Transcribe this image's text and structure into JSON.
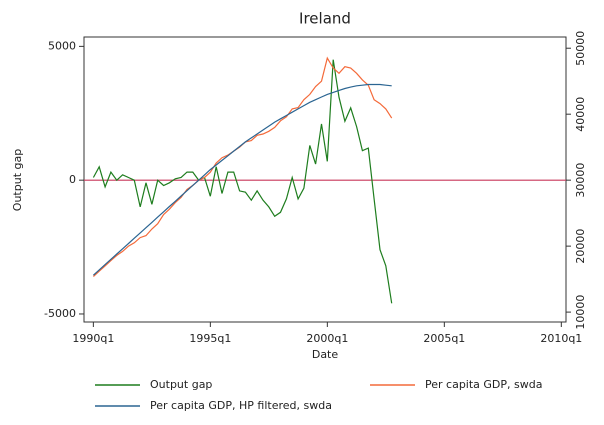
{
  "chart_data": {
    "type": "line",
    "title": "Ireland",
    "x_label": "Date",
    "y_label": "Output gap",
    "x": [
      1990,
      1990.25,
      1990.5,
      1990.75,
      1991,
      1991.25,
      1991.5,
      1991.75,
      1992,
      1992.25,
      1992.5,
      1992.75,
      1993,
      1993.25,
      1993.5,
      1993.75,
      1994,
      1994.25,
      1994.5,
      1994.75,
      1995,
      1995.25,
      1995.5,
      1995.75,
      1996,
      1996.25,
      1996.5,
      1996.75,
      1997,
      1997.25,
      1997.5,
      1997.75,
      1998,
      1998.25,
      1998.5,
      1998.75,
      1999,
      1999.25,
      1999.5,
      1999.75,
      2000,
      2000.25,
      2000.5,
      2000.75,
      2001,
      2001.25,
      2001.5,
      2001.75,
      2002,
      2002.25,
      2002.5,
      2002.75
    ],
    "series": [
      {
        "name": "Output gap",
        "color": "#1e7d1e",
        "axis": "y",
        "values": [
          100,
          500,
          -250,
          300,
          0,
          200,
          100,
          0,
          -1000,
          -100,
          -900,
          0,
          -200,
          -100,
          50,
          100,
          300,
          300,
          0,
          100,
          -600,
          500,
          -500,
          300,
          300,
          -400,
          -450,
          -750,
          -400,
          -750,
          -1000,
          -1350,
          -1200,
          -700,
          100,
          -700,
          -300,
          1300,
          600,
          2100,
          700,
          4500,
          3100,
          2200,
          2700,
          2000,
          1100,
          1200,
          -700,
          -2600,
          -3200,
          -4600
        ]
      },
      {
        "name": "Per capita GDP, swda",
        "color": "#f46a3a",
        "axis": "y2",
        "values": [
          15400,
          16200,
          17000,
          17800,
          18600,
          19200,
          20000,
          20500,
          21300,
          21600,
          22600,
          23400,
          24800,
          25600,
          26600,
          27400,
          28600,
          29200,
          30000,
          30400,
          31200,
          32600,
          33400,
          33800,
          34400,
          35000,
          35800,
          36000,
          36800,
          37000,
          37400,
          38000,
          39000,
          39600,
          40800,
          41000,
          42200,
          43000,
          44200,
          45000,
          48500,
          47000,
          46200,
          47200,
          47000,
          46200,
          45200,
          44400,
          42200,
          41600,
          40800,
          39400
        ]
      },
      {
        "name": "Per capita GDP, HP filtered, swda",
        "color": "#2b6592",
        "axis": "y2",
        "values": [
          15600,
          16400,
          17200,
          18000,
          18800,
          19600,
          20400,
          21200,
          22000,
          22800,
          23600,
          24400,
          25200,
          26000,
          26800,
          27600,
          28400,
          29200,
          30000,
          30800,
          31600,
          32300,
          33000,
          33700,
          34400,
          35100,
          35800,
          36400,
          37000,
          37600,
          38200,
          38800,
          39300,
          39800,
          40300,
          40800,
          41300,
          41800,
          42200,
          42600,
          43000,
          43300,
          43600,
          43900,
          44100,
          44300,
          44400,
          44500,
          44500,
          44500,
          44400,
          44300
        ]
      }
    ],
    "xlim": [
      1989.6,
      2010.2
    ],
    "xticks": [
      {
        "value": 1990,
        "label": "1990q1"
      },
      {
        "value": 1995,
        "label": "1995q1"
      },
      {
        "value": 2000,
        "label": "2000q1"
      },
      {
        "value": 2005,
        "label": "2005q1"
      },
      {
        "value": 2010,
        "label": "2010q1"
      }
    ],
    "ylim": [
      -5300,
      5350
    ],
    "yticks": [
      -5000,
      0,
      5000
    ],
    "y2lim": [
      8500,
      51700
    ],
    "y2ticks": [
      10000,
      20000,
      30000,
      40000,
      50000
    ],
    "hline": 0,
    "hline_color": "#c8365a",
    "legend": "bottom"
  }
}
